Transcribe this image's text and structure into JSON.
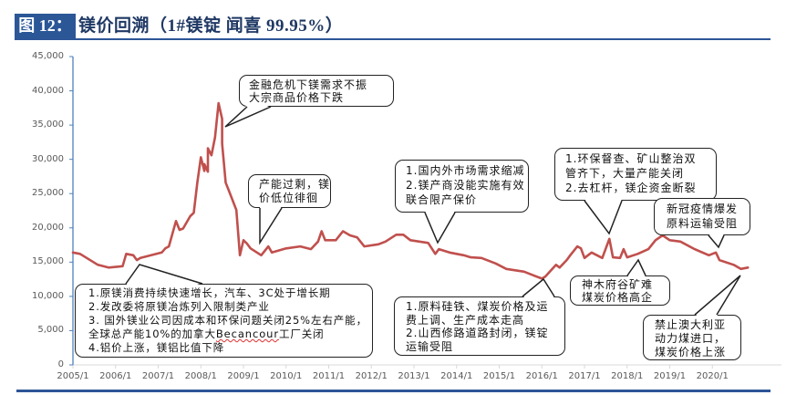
{
  "figure": {
    "label": "图 12：",
    "title": "镁价回溯（1#镁锭 闻喜 99.95%）"
  },
  "colors": {
    "line": "#C0504D",
    "y_axis": "#4F81BD",
    "x_axis": "#D9D9D9",
    "title_bg": "#2B5797",
    "title_text": "#1F3864",
    "rule": "#2E5597"
  },
  "chart_data": {
    "type": "line",
    "title": "镁价回溯（1#镁锭 闻喜 99.95%）",
    "xlabel": "",
    "ylabel": "",
    "ylim": [
      0,
      45000
    ],
    "grid": false,
    "legend": "none",
    "yticks": [
      0,
      5000,
      10000,
      15000,
      20000,
      25000,
      30000,
      35000,
      40000,
      45000
    ],
    "ytick_labels": [
      "0",
      "5,000",
      "10,000",
      "15,000",
      "20,000",
      "25,000",
      "30,000",
      "35,000",
      "40,000",
      "45,000"
    ],
    "xtick_labels": [
      "2005/1",
      "2006/1",
      "2007/1",
      "2008/1",
      "2009/1",
      "2010/1",
      "2011/1",
      "2012/1",
      "2013/1",
      "2014/1",
      "2015/1",
      "2016/1",
      "2017/1",
      "2018/1",
      "2019/1",
      "2020/1"
    ],
    "series": [
      {
        "name": "1#镁锭 闻喜 99.95%",
        "color": "#C0504D",
        "points": [
          [
            "2005/1",
            16400
          ],
          [
            "2005/3",
            16200
          ],
          [
            "2005/8",
            14600
          ],
          [
            "2005/11",
            14200
          ],
          [
            "2006/3",
            14400
          ],
          [
            "2006/4",
            16200
          ],
          [
            "2006/6",
            16000
          ],
          [
            "2006/7",
            15300
          ],
          [
            "2006/8",
            15600
          ],
          [
            "2007/2",
            16400
          ],
          [
            "2007/3",
            17000
          ],
          [
            "2007/4",
            17300
          ],
          [
            "2007/6",
            21000
          ],
          [
            "2007/7",
            19700
          ],
          [
            "2007/8",
            19900
          ],
          [
            "2007/10",
            21700
          ],
          [
            "2007/11",
            22200
          ],
          [
            "2007/12",
            26600
          ],
          [
            "2008/1",
            30300
          ],
          [
            "2008/2",
            28300
          ],
          [
            "2008/2",
            29300
          ],
          [
            "2008/3",
            28200
          ],
          [
            "2008/3",
            31600
          ],
          [
            "2008/4",
            30600
          ],
          [
            "2008/5",
            33200
          ],
          [
            "2008/6",
            38200
          ],
          [
            "2008/7",
            35900
          ],
          [
            "2008/7",
            32300
          ],
          [
            "2008/8",
            26600
          ],
          [
            "2008/9",
            25300
          ],
          [
            "2008/11",
            22600
          ],
          [
            "2008/12",
            16000
          ],
          [
            "2009/1",
            18200
          ],
          [
            "2009/2",
            17700
          ],
          [
            "2009/3",
            17000
          ],
          [
            "2009/6",
            16000
          ],
          [
            "2009/8",
            17300
          ],
          [
            "2009/9",
            16400
          ],
          [
            "2010/1",
            17000
          ],
          [
            "2010/5",
            17300
          ],
          [
            "2010/8",
            16900
          ],
          [
            "2010/10",
            18000
          ],
          [
            "2010/11",
            19500
          ],
          [
            "2010/12",
            18200
          ],
          [
            "2011/3",
            18200
          ],
          [
            "2011/5",
            19500
          ],
          [
            "2011/7",
            18900
          ],
          [
            "2011/9",
            18600
          ],
          [
            "2011/11",
            17300
          ],
          [
            "2012/3",
            17600
          ],
          [
            "2012/5",
            18000
          ],
          [
            "2012/8",
            19000
          ],
          [
            "2012/10",
            19000
          ],
          [
            "2012/12",
            18200
          ],
          [
            "2013/5",
            17800
          ],
          [
            "2013/7",
            16200
          ],
          [
            "2013/8",
            16900
          ],
          [
            "2013/11",
            16400
          ],
          [
            "2014/3",
            16000
          ],
          [
            "2014/5",
            15700
          ],
          [
            "2014/8",
            15600
          ],
          [
            "2014/12",
            14800
          ],
          [
            "2015/3",
            14000
          ],
          [
            "2015/8",
            13600
          ],
          [
            "2015/11",
            13000
          ],
          [
            "2016/1",
            12600
          ],
          [
            "2016/2",
            12900
          ],
          [
            "2016/5",
            14600
          ],
          [
            "2016/6",
            14200
          ],
          [
            "2016/8",
            15300
          ],
          [
            "2016/9",
            16000
          ],
          [
            "2016/11",
            17300
          ],
          [
            "2016/12",
            17000
          ],
          [
            "2017/1",
            15600
          ],
          [
            "2017/3",
            16400
          ],
          [
            "2017/6",
            15600
          ],
          [
            "2017/8",
            18400
          ],
          [
            "2017/9",
            15700
          ],
          [
            "2017/11",
            15600
          ],
          [
            "2017/12",
            16900
          ],
          [
            "2018/1",
            15700
          ],
          [
            "2018/4",
            16200
          ],
          [
            "2018/7",
            16900
          ],
          [
            "2018/9",
            18200
          ],
          [
            "2018/11",
            18900
          ],
          [
            "2019/1",
            18200
          ],
          [
            "2019/4",
            18000
          ],
          [
            "2019/8",
            16900
          ],
          [
            "2019/12",
            16000
          ],
          [
            "2020/2",
            16400
          ],
          [
            "2020/3",
            15300
          ],
          [
            "2020/7",
            14600
          ],
          [
            "2020/9",
            14000
          ],
          [
            "2020/11",
            14200
          ]
        ]
      }
    ],
    "annotations": [
      {
        "id": "financial-crisis",
        "points_to": "2008/6",
        "lines": [
          "金融危机下镁需求不振",
          "大宗商品价格下跌"
        ]
      },
      {
        "id": "overcapacity",
        "points_to": "2009/6",
        "lines": [
          "产能过剩，镁",
          "价低位徘徊"
        ]
      },
      {
        "id": "early-growth",
        "points_to": "2006/4",
        "lines": [
          "1.原镁消费持续快速增长，汽车、3C处于增长期",
          "2.发改委将原镁冶炼列入限制类产业",
          "3. 国外镁业公司因成本和环保问题关闭25%左右产能，",
          "全球总产能10%的加拿大",
          "4.铝价上涨，镁铝比值下降"
        ],
        "line4_parts": [
          "全球总产能10%的加拿大",
          "Becancour",
          "工厂关闭"
        ]
      },
      {
        "id": "demand-shrink",
        "points_to": "2013/8",
        "lines": [
          "1.国内外市场需求缩减",
          "2.镁产商没能实施有效",
          "联合限产保价"
        ]
      },
      {
        "id": "environmental",
        "points_to": "2017/8",
        "lines": [
          "1.环保督查、矿山整治双",
          "管齐下，大量产能关闭",
          "2.去杠杆，镁企资金断裂"
        ]
      },
      {
        "id": "covid",
        "points_to": "2020/2",
        "lines": [
          "新冠疫情爆发",
          "原料运输受阻"
        ]
      },
      {
        "id": "raw-material",
        "points_to": "2016/1",
        "lines": [
          "1.原料硅铁、煤炭价格及运",
          "费上调、生产成本走高",
          "2.山西修路道路封闭，镁锭",
          "运输受阻"
        ]
      },
      {
        "id": "mine-accident",
        "points_to": "2018/4",
        "lines": [
          "神木府谷矿难",
          "煤炭价格高企"
        ]
      },
      {
        "id": "australia-coal",
        "points_to": "2020/11",
        "lines": [
          "禁止澳大利亚",
          "动力煤进口，",
          "煤炭价格上涨"
        ]
      }
    ]
  }
}
